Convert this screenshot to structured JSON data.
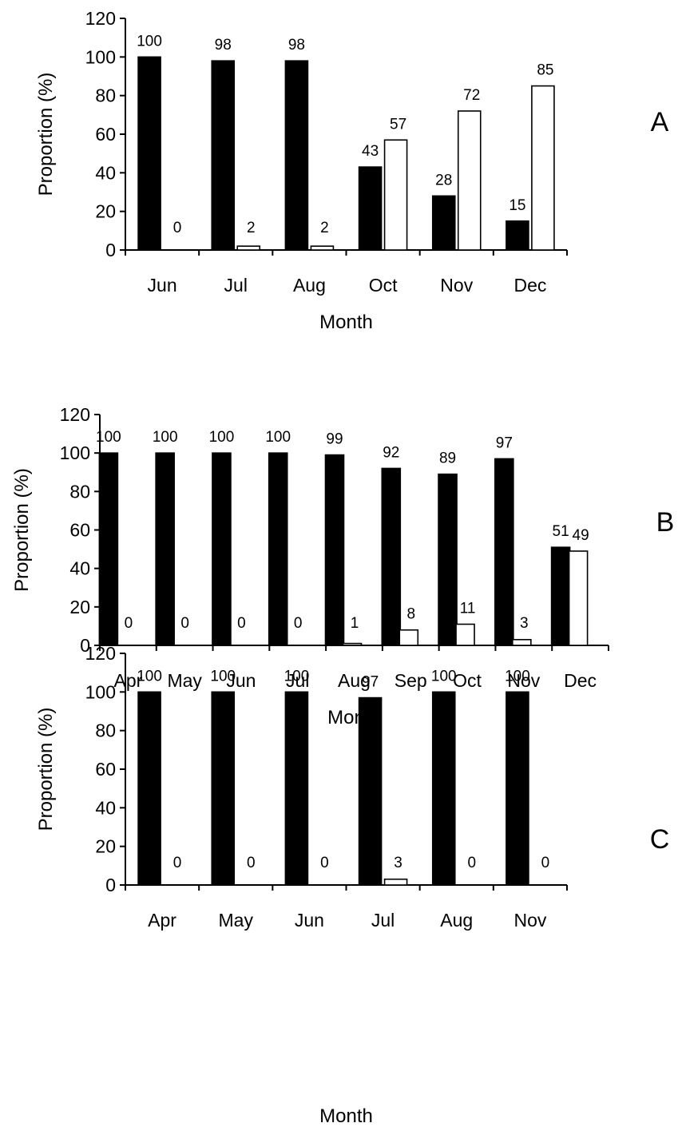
{
  "chart_data": [
    {
      "type": "bar",
      "panel_label": "A",
      "xlabel": "Month",
      "ylabel": "Proportion (%)",
      "ylim": [
        0,
        120
      ],
      "yticks": [
        0,
        20,
        40,
        60,
        80,
        100,
        120
      ],
      "categories": [
        "Jun",
        "Jul",
        "Aug",
        "Oct",
        "Nov",
        "Dec"
      ],
      "series": [
        {
          "fill": "#000000",
          "values": [
            100,
            98,
            98,
            43,
            28,
            15
          ],
          "labels": [
            "100",
            "98",
            "98",
            "43",
            "28",
            "15"
          ]
        },
        {
          "fill": "#ffffff",
          "values": [
            0,
            2,
            2,
            57,
            72,
            85
          ],
          "labels": [
            "0",
            "2",
            "2",
            "57",
            "72",
            "85"
          ]
        }
      ]
    },
    {
      "type": "bar",
      "panel_label": "B",
      "xlabel": "Month",
      "ylabel": "Proportion (%)",
      "ylim": [
        0,
        120
      ],
      "yticks": [
        0,
        20,
        40,
        60,
        80,
        100,
        120
      ],
      "categories": [
        "Apr",
        "May",
        "Jun",
        "Jul",
        "Aug",
        "Sep",
        "Oct",
        "Nov",
        "Dec"
      ],
      "series": [
        {
          "fill": "#000000",
          "values": [
            100,
            100,
            100,
            100,
            99,
            92,
            89,
            97,
            51
          ],
          "labels": [
            "100",
            "100",
            "100",
            "100",
            "99",
            "92",
            "89",
            "97",
            "51"
          ]
        },
        {
          "fill": "#ffffff",
          "values": [
            0,
            0,
            0,
            0,
            1,
            8,
            11,
            3,
            49
          ],
          "labels": [
            "0",
            "0",
            "0",
            "0",
            "1",
            "8",
            "11",
            "3",
            "49"
          ]
        }
      ]
    },
    {
      "type": "bar",
      "panel_label": "C",
      "xlabel": "Month",
      "ylabel": "Proportion (%)",
      "ylim": [
        0,
        120
      ],
      "yticks": [
        0,
        20,
        40,
        60,
        80,
        100,
        120
      ],
      "categories": [
        "Apr",
        "May",
        "Jun",
        "Jul",
        "Aug",
        "Nov"
      ],
      "series": [
        {
          "fill": "#000000",
          "values": [
            100,
            100,
            100,
            97,
            100,
            100
          ],
          "labels": [
            "100",
            "100",
            "100",
            "97",
            "100",
            "100"
          ]
        },
        {
          "fill": "#ffffff",
          "values": [
            0,
            0,
            0,
            3,
            0,
            0
          ],
          "labels": [
            "0",
            "0",
            "0",
            "3",
            "0",
            "0"
          ]
        }
      ]
    }
  ]
}
